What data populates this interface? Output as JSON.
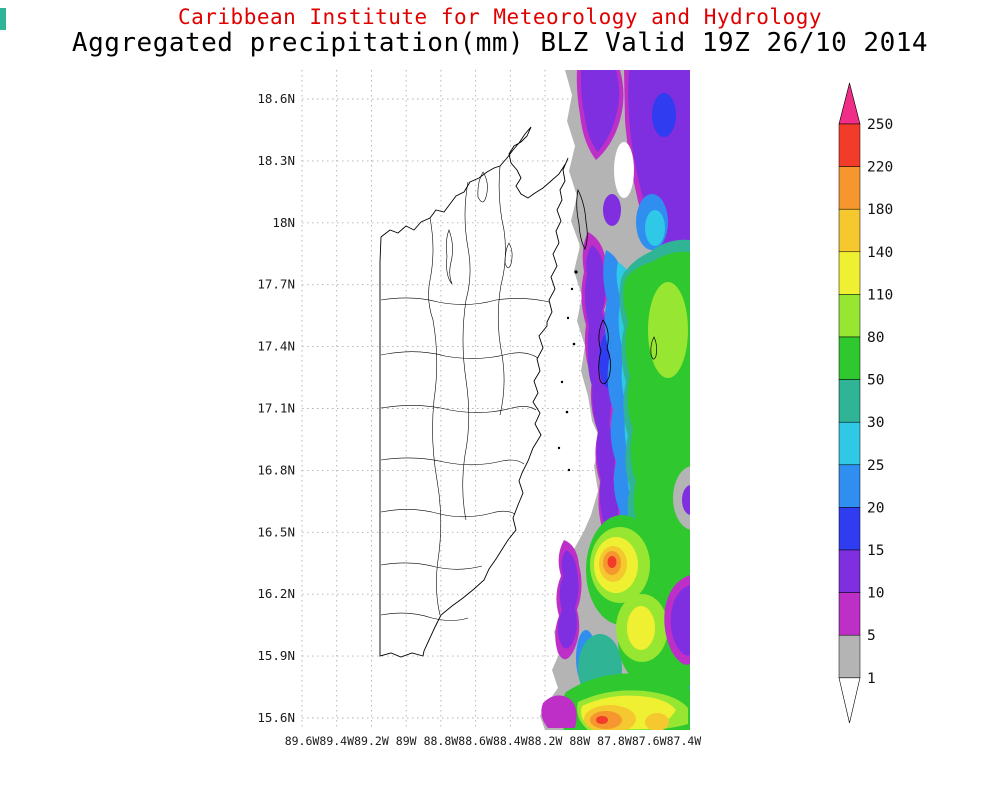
{
  "header": {
    "line1": "Caribbean Institute for Meteorology and Hydrology",
    "line2": "Aggregated precipitation(mm) BLZ Valid 19Z 26/10 2014",
    "line1_color": "#e00000",
    "line2_color": "#000000"
  },
  "chart_data": {
    "type": "heatmap",
    "title": "Aggregated precipitation(mm) BLZ Valid 19Z 26/10 2014",
    "institution": "Caribbean Institute for Meteorology and Hydrology",
    "variable": "Aggregated precipitation",
    "units": "mm",
    "region_code": "BLZ",
    "valid_time": "19Z 26/10 2014",
    "grid": true,
    "legend_position": "right",
    "lat_ticks": [
      "18.6N",
      "18.3N",
      "18N",
      "17.7N",
      "17.4N",
      "17.1N",
      "16.8N",
      "16.5N",
      "16.2N",
      "15.9N",
      "15.6N"
    ],
    "lon_ticks": [
      "89.6W",
      "89.4W",
      "89.2W",
      "89W",
      "88.8W",
      "88.6W",
      "88.4W",
      "88.2W",
      "88W",
      "87.8W",
      "87.6W",
      "87.4W"
    ],
    "colorbar": {
      "levels": [
        1,
        5,
        10,
        15,
        20,
        25,
        30,
        50,
        80,
        110,
        140,
        180,
        220,
        250
      ],
      "colors_bottom_to_top": [
        "#ffffff",
        "#b4b4b4",
        "#be2fc8",
        "#7f2fe0",
        "#2f3cf0",
        "#2f8ef0",
        "#2fc8e6",
        "#2fb496",
        "#2fc82f",
        "#96e632",
        "#f0f032",
        "#f5c82f",
        "#f5962f",
        "#f23b28",
        "#f02d87"
      ],
      "low_arrow_color": "#ffffff",
      "high_arrow_color": "#f02d87"
    },
    "field_summary": "Precipitation shading covers the sea east of the Belize coastline: grey fringe (1-5mm) with broad purple/magenta areas (5-15mm) in the north, a wide teal-green core (30-110mm) offshore, and yellow/orange/red maxima (110-250mm+) in the south near the bottom of the map."
  },
  "misc": {
    "edge_mark_color": "#2fb496"
  }
}
